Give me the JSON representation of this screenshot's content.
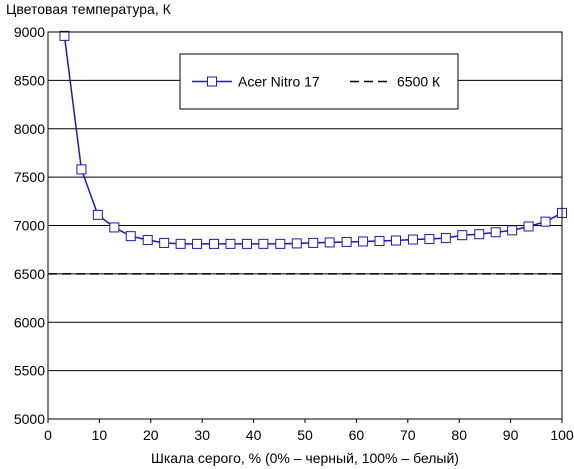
{
  "chart_data": {
    "type": "line",
    "ylabel": "Цветовая температура, К",
    "xlabel": "Шкала серого, % (0% – черный, 100% – белый)",
    "xlim": [
      0,
      100
    ],
    "ylim": [
      5000,
      9000
    ],
    "x_ticks": [
      0,
      10,
      20,
      30,
      40,
      50,
      60,
      70,
      80,
      90,
      100
    ],
    "y_ticks": [
      5000,
      5500,
      6000,
      6500,
      7000,
      7500,
      8000,
      8500,
      9000
    ],
    "grid": "horizontal",
    "legend_position": "top-center",
    "series": [
      {
        "name": "Acer Nitro 17",
        "style": "solid-line-square-markers",
        "color": "#1a1abf",
        "points": [
          {
            "x": 3.2,
            "y": 8960
          },
          {
            "x": 6.5,
            "y": 7580
          },
          {
            "x": 9.7,
            "y": 7110
          },
          {
            "x": 12.9,
            "y": 6980
          },
          {
            "x": 16.1,
            "y": 6890
          },
          {
            "x": 19.4,
            "y": 6850
          },
          {
            "x": 22.6,
            "y": 6820
          },
          {
            "x": 25.8,
            "y": 6810
          },
          {
            "x": 29.0,
            "y": 6810
          },
          {
            "x": 32.3,
            "y": 6810
          },
          {
            "x": 35.5,
            "y": 6810
          },
          {
            "x": 38.7,
            "y": 6810
          },
          {
            "x": 41.9,
            "y": 6810
          },
          {
            "x": 45.2,
            "y": 6810
          },
          {
            "x": 48.4,
            "y": 6815
          },
          {
            "x": 51.6,
            "y": 6820
          },
          {
            "x": 54.8,
            "y": 6825
          },
          {
            "x": 58.1,
            "y": 6830
          },
          {
            "x": 61.3,
            "y": 6835
          },
          {
            "x": 64.5,
            "y": 6840
          },
          {
            "x": 67.7,
            "y": 6845
          },
          {
            "x": 71.0,
            "y": 6855
          },
          {
            "x": 74.2,
            "y": 6860
          },
          {
            "x": 77.4,
            "y": 6870
          },
          {
            "x": 80.6,
            "y": 6900
          },
          {
            "x": 83.9,
            "y": 6910
          },
          {
            "x": 87.1,
            "y": 6930
          },
          {
            "x": 90.3,
            "y": 6950
          },
          {
            "x": 93.5,
            "y": 6990
          },
          {
            "x": 96.8,
            "y": 7040
          },
          {
            "x": 100,
            "y": 7130
          }
        ]
      },
      {
        "name": "6500 К",
        "style": "dashed-line",
        "color": "#000000",
        "points": [
          {
            "x": 0,
            "y": 6500
          },
          {
            "x": 100,
            "y": 6500
          }
        ]
      }
    ]
  }
}
